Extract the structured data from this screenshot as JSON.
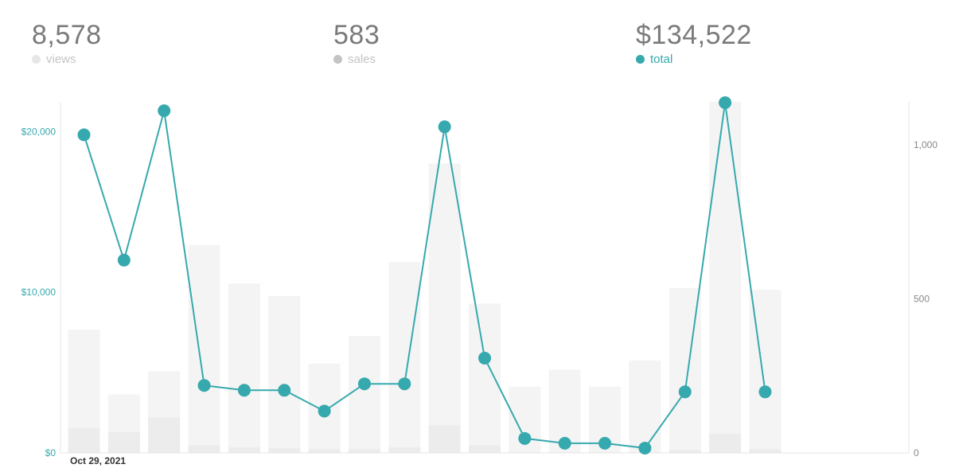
{
  "stats": {
    "views": {
      "value": "8,578",
      "label": "views",
      "color": "#e6e6e6"
    },
    "sales": {
      "value": "583",
      "label": "sales",
      "color": "#c4c4c4"
    },
    "total": {
      "value": "$134,522",
      "label": "total",
      "color": "#36a9ae"
    }
  },
  "chart_data": {
    "type": "bar+line",
    "x_start_label": "Oct 29, 2021",
    "left_axis": {
      "ticks": [
        "$0",
        "$10,000",
        "$20,000"
      ],
      "tick_values": [
        0,
        10000,
        20000
      ],
      "ylim": [
        0,
        21850
      ],
      "color": "#36a9ae"
    },
    "right_axis": {
      "ticks": [
        "0",
        "500",
        "1,000"
      ],
      "tick_values": [
        0,
        500,
        1000
      ],
      "ylim": [
        0,
        1140
      ],
      "color": "#888888"
    },
    "grid": false,
    "series": [
      {
        "key": "views",
        "type": "bar",
        "axis": "right",
        "color": "#f4f4f4",
        "values": [
          400,
          190,
          265,
          675,
          550,
          510,
          290,
          380,
          620,
          940,
          485,
          215,
          270,
          215,
          300,
          535,
          1140,
          530
        ]
      },
      {
        "key": "sales",
        "type": "bar",
        "axis": "right",
        "color": "#ececec",
        "values": [
          80,
          68,
          115,
          25,
          18,
          15,
          12,
          12,
          18,
          90,
          25,
          0,
          0,
          0,
          0,
          10,
          62,
          12
        ]
      },
      {
        "key": "total",
        "type": "line",
        "axis": "left",
        "color": "#36a9ae",
        "values": [
          19800,
          12000,
          21300,
          4200,
          3900,
          3900,
          2600,
          4300,
          4300,
          20300,
          5900,
          900,
          600,
          600,
          300,
          3800,
          21800,
          3800
        ]
      }
    ]
  }
}
